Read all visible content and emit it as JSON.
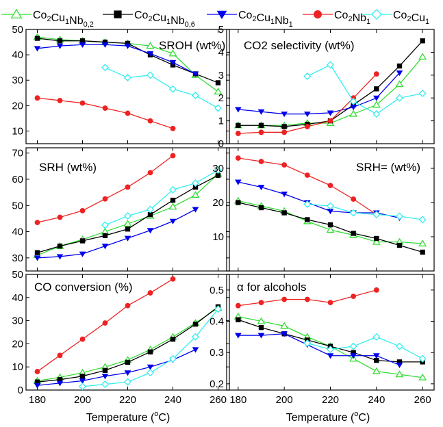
{
  "legend": [
    {
      "key": "s1",
      "main": "Co",
      "parts": [
        [
          "2",
          ""
        ],
        [
          "Cu",
          ""
        ],
        [
          "1",
          ""
        ],
        [
          "Nb",
          ""
        ],
        [
          "0,2",
          ""
        ]
      ]
    },
    {
      "key": "s2",
      "parts": []
    },
    {
      "key": "s3",
      "parts": []
    },
    {
      "key": "s4",
      "parts": []
    },
    {
      "key": "s5",
      "parts": []
    }
  ],
  "legend_items": [
    {
      "segments": [
        {
          "t": "Co",
          "sub": false
        },
        {
          "t": "2",
          "sub": true
        },
        {
          "t": "Cu",
          "sub": false
        },
        {
          "t": "1",
          "sub": true
        },
        {
          "t": "Nb",
          "sub": false
        },
        {
          "t": "0,2",
          "sub": true
        }
      ],
      "color": "#33dd33",
      "marker": "triangle-up-open"
    },
    {
      "segments": [
        {
          "t": "Co",
          "sub": false
        },
        {
          "t": "2",
          "sub": true
        },
        {
          "t": "Cu",
          "sub": false
        },
        {
          "t": "1",
          "sub": true
        },
        {
          "t": "Nb",
          "sub": false
        },
        {
          "t": "0,6",
          "sub": true
        }
      ],
      "color": "#000000",
      "marker": "square-filled"
    },
    {
      "segments": [
        {
          "t": "Co",
          "sub": false
        },
        {
          "t": "2",
          "sub": true
        },
        {
          "t": "Cu",
          "sub": false
        },
        {
          "t": "1",
          "sub": true
        },
        {
          "t": "Nb",
          "sub": false
        },
        {
          "t": "1",
          "sub": true
        }
      ],
      "color": "#0000ee",
      "marker": "triangle-down-filled"
    },
    {
      "segments": [
        {
          "t": "Co",
          "sub": false
        },
        {
          "t": "2",
          "sub": true
        },
        {
          "t": "Nb",
          "sub": false
        },
        {
          "t": "1",
          "sub": true
        }
      ],
      "color": "#ee2222",
      "marker": "circle-filled"
    },
    {
      "segments": [
        {
          "t": "Co",
          "sub": false
        },
        {
          "t": "2",
          "sub": true
        },
        {
          "t": "Cu",
          "sub": false
        },
        {
          "t": "1",
          "sub": true
        }
      ],
      "color": "#33eeee",
      "marker": "diamond-open"
    }
  ],
  "x_axis_label": {
    "text": "Temperature (",
    "sup": "o",
    "unit": "C)"
  },
  "chart_data": [
    {
      "type": "line",
      "title": "SROH (wt%)",
      "x": [
        180,
        190,
        200,
        210,
        220,
        230,
        240,
        250,
        260
      ],
      "xlim": [
        175,
        265
      ],
      "ylim": [
        5,
        50
      ],
      "xticks": [
        180,
        200,
        220,
        240,
        260
      ],
      "yticks": [
        10,
        20,
        30,
        40,
        50
      ],
      "show_x_tick_labels": false,
      "series": [
        {
          "name": "Co2Cu1Nb0,2",
          "values": [
            47,
            46,
            45.5,
            45,
            44.5,
            43.5,
            40.5,
            32,
            25.5
          ]
        },
        {
          "name": "Co2Cu1Nb0,6",
          "values": [
            46.5,
            45.5,
            45.5,
            45,
            44.5,
            40,
            36,
            32.5,
            29
          ]
        },
        {
          "name": "Co2Cu1Nb1",
          "values": [
            42.5,
            43.5,
            44,
            44,
            43.5,
            40.5,
            37,
            32.5,
            null
          ]
        },
        {
          "name": "Co2Nb1",
          "values": [
            23,
            22,
            21,
            19,
            17,
            14,
            11,
            null,
            null
          ]
        },
        {
          "name": "Co2Cu1",
          "values": [
            null,
            null,
            null,
            35,
            31,
            32,
            26.5,
            24,
            19
          ]
        }
      ]
    },
    {
      "type": "line",
      "title": "CO2 selectivity (wt%)",
      "x": [
        180,
        190,
        200,
        210,
        220,
        230,
        240,
        250,
        260
      ],
      "xlim": [
        175,
        265
      ],
      "ylim": [
        0,
        5
      ],
      "xticks": [
        180,
        200,
        220,
        240,
        260
      ],
      "yticks": [
        0,
        1,
        2,
        3,
        4,
        5
      ],
      "show_x_tick_labels": false,
      "series": [
        {
          "name": "Co2Cu1Nb0,2",
          "values": [
            0.8,
            0.8,
            0.8,
            0.9,
            0.9,
            1.3,
            1.7,
            2.6,
            3.8
          ]
        },
        {
          "name": "Co2Cu1Nb0,6",
          "values": [
            0.8,
            0.8,
            0.75,
            0.85,
            1.0,
            1.7,
            2.4,
            3.4,
            4.5
          ]
        },
        {
          "name": "Co2Cu1Nb1",
          "values": [
            1.5,
            1.4,
            1.3,
            1.3,
            1.35,
            1.6,
            2.0,
            3.1,
            null
          ]
        },
        {
          "name": "Co2Nb1",
          "values": [
            0.45,
            0.5,
            0.5,
            0.75,
            1.0,
            2.0,
            3.05,
            null,
            null
          ]
        },
        {
          "name": "Co2Cu1",
          "values": [
            null,
            null,
            null,
            2.95,
            3.45,
            1.85,
            1.3,
            2.0,
            2.2
          ]
        }
      ]
    },
    {
      "type": "line",
      "title": "SRH (wt%)",
      "x": [
        180,
        190,
        200,
        210,
        220,
        230,
        240,
        250,
        260
      ],
      "xlim": [
        175,
        265
      ],
      "ylim": [
        25,
        72
      ],
      "xticks": [
        180,
        200,
        220,
        240,
        260
      ],
      "yticks": [
        30,
        40,
        50,
        60,
        70
      ],
      "show_x_tick_labels": false,
      "series": [
        {
          "name": "Co2Cu1Nb0,2",
          "values": [
            31,
            34.5,
            37,
            40,
            43,
            46,
            49.5,
            54,
            62
          ]
        },
        {
          "name": "Co2Cu1Nb0,6",
          "values": [
            32,
            34.5,
            36.5,
            38.5,
            41,
            46.5,
            52,
            57,
            61.5
          ]
        },
        {
          "name": "Co2Cu1Nb1",
          "values": [
            30,
            30.5,
            31.5,
            34.5,
            37.5,
            40.5,
            44,
            48.5,
            null
          ]
        },
        {
          "name": "Co2Nb1",
          "values": [
            43.5,
            45.5,
            48,
            52.5,
            57,
            62.5,
            69,
            null,
            null
          ]
        },
        {
          "name": "Co2Cu1",
          "values": [
            null,
            null,
            null,
            42.5,
            46,
            48.5,
            56,
            58.5,
            63.5
          ]
        }
      ]
    },
    {
      "type": "line",
      "title": "SRH= (wt%)",
      "x": [
        180,
        190,
        200,
        210,
        220,
        230,
        240,
        250,
        260
      ],
      "xlim": [
        175,
        265
      ],
      "ylim": [
        0,
        36
      ],
      "xticks": [
        180,
        200,
        220,
        240,
        260
      ],
      "yticks": [
        10,
        20,
        30
      ],
      "show_x_tick_labels": false,
      "series": [
        {
          "name": "Co2Cu1Nb0,2",
          "values": [
            20.5,
            19,
            17.5,
            14.5,
            12,
            10.5,
            8.5,
            8.5,
            8
          ]
        },
        {
          "name": "Co2Cu1Nb0,6",
          "values": [
            20,
            18.5,
            17,
            15,
            13.5,
            11,
            9.5,
            7.5,
            5.5
          ]
        },
        {
          "name": "Co2Cu1Nb1",
          "values": [
            26,
            24.5,
            22.5,
            20,
            17.5,
            17,
            17,
            15.5,
            null
          ]
        },
        {
          "name": "Co2Nb1",
          "values": [
            33,
            32,
            31,
            28,
            25,
            21,
            16.5,
            null,
            null
          ]
        },
        {
          "name": "Co2Cu1",
          "values": [
            null,
            null,
            null,
            19.5,
            19,
            17,
            16.5,
            16,
            15
          ]
        }
      ]
    },
    {
      "type": "line",
      "title": "CO conversion (%)",
      "x": [
        180,
        190,
        200,
        210,
        220,
        230,
        240,
        250,
        260
      ],
      "xlim": [
        175,
        265
      ],
      "ylim": [
        0,
        50
      ],
      "xticks": [
        180,
        200,
        220,
        240,
        260
      ],
      "yticks": [
        0,
        10,
        20,
        30,
        40,
        50
      ],
      "show_x_tick_labels": true,
      "series": [
        {
          "name": "Co2Cu1Nb0,2",
          "values": [
            4,
            5.5,
            7.5,
            10,
            13,
            17.5,
            23,
            29,
            35.5
          ]
        },
        {
          "name": "Co2Cu1Nb0,6",
          "values": [
            3.5,
            4.5,
            6,
            8.5,
            12,
            16.5,
            22,
            28.5,
            36
          ]
        },
        {
          "name": "Co2Cu1Nb1",
          "values": [
            2,
            3,
            4,
            6,
            7.5,
            10,
            13,
            17.5,
            null
          ]
        },
        {
          "name": "Co2Nb1",
          "values": [
            8,
            15,
            22,
            29,
            36.5,
            42,
            48,
            null,
            null
          ]
        },
        {
          "name": "Co2Cu1",
          "values": [
            null,
            null,
            1.5,
            2.5,
            3.5,
            7.5,
            13.5,
            23,
            35
          ]
        }
      ]
    },
    {
      "type": "line",
      "title": "α for alcohols",
      "x": [
        180,
        190,
        200,
        210,
        220,
        230,
        240,
        250,
        260
      ],
      "xlim": [
        175,
        265
      ],
      "ylim": [
        0.18,
        0.55
      ],
      "xticks": [
        180,
        200,
        220,
        240,
        260
      ],
      "yticks": [
        0.2,
        0.3,
        0.4,
        0.5
      ],
      "show_x_tick_labels": true,
      "series": [
        {
          "name": "Co2Cu1Nb0,2",
          "values": [
            0.415,
            0.4,
            0.385,
            0.35,
            0.32,
            0.28,
            0.24,
            0.23,
            0.22
          ]
        },
        {
          "name": "Co2Cu1Nb0,6",
          "values": [
            0.405,
            0.38,
            0.36,
            0.34,
            0.32,
            0.3,
            0.275,
            0.27,
            0.27
          ]
        },
        {
          "name": "Co2Cu1Nb1",
          "values": [
            0.355,
            0.355,
            0.36,
            0.325,
            0.29,
            0.29,
            0.29,
            0.26,
            null
          ]
        },
        {
          "name": "Co2Nb1",
          "values": [
            0.45,
            0.46,
            0.47,
            0.47,
            0.46,
            0.48,
            0.5,
            null,
            null
          ]
        },
        {
          "name": "Co2Cu1",
          "values": [
            null,
            null,
            null,
            0.33,
            0.31,
            0.32,
            0.35,
            0.32,
            0.28
          ]
        }
      ]
    }
  ]
}
